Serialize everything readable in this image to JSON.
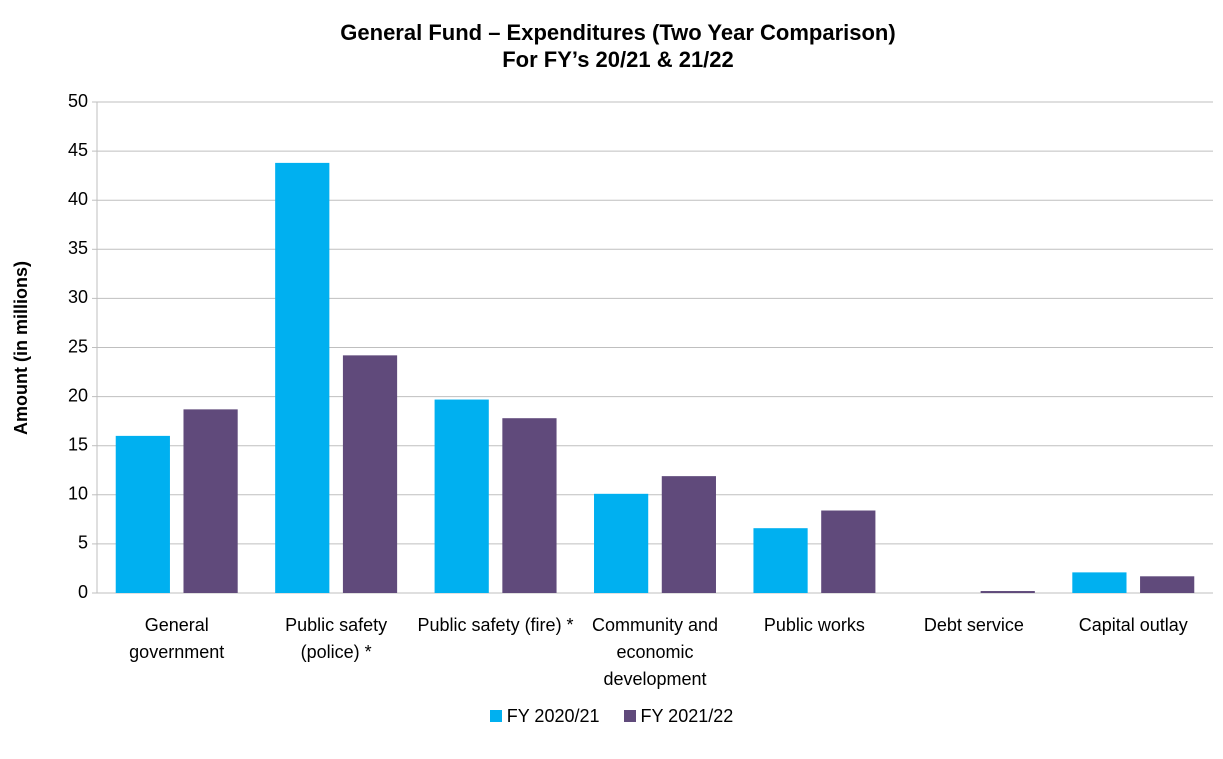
{
  "chart_data": {
    "type": "bar",
    "title": "General Fund – Expenditures (Two Year Comparison)",
    "subtitle": "For FY’s 20/21 & 21/22",
    "y_label": "Amount (in millions)",
    "categories": [
      "General government",
      "Public safety (police) *",
      "Public safety (fire) *",
      "Community and economic development",
      "Public works",
      "Debt service",
      "Capital outlay"
    ],
    "series": [
      {
        "name": "FY 2020/21",
        "color": "#00b0f0",
        "values": [
          16.0,
          43.8,
          19.7,
          10.1,
          6.6,
          0,
          2.1
        ]
      },
      {
        "name": "FY 2021/22",
        "color": "#604a7b",
        "values": [
          18.7,
          24.2,
          17.8,
          11.9,
          8.4,
          0.2,
          1.7
        ]
      }
    ],
    "ylim": [
      0,
      50
    ],
    "yticks": [
      0,
      5,
      10,
      15,
      20,
      25,
      30,
      35,
      40,
      45,
      50
    ],
    "grid": true,
    "legend": "bottom"
  }
}
